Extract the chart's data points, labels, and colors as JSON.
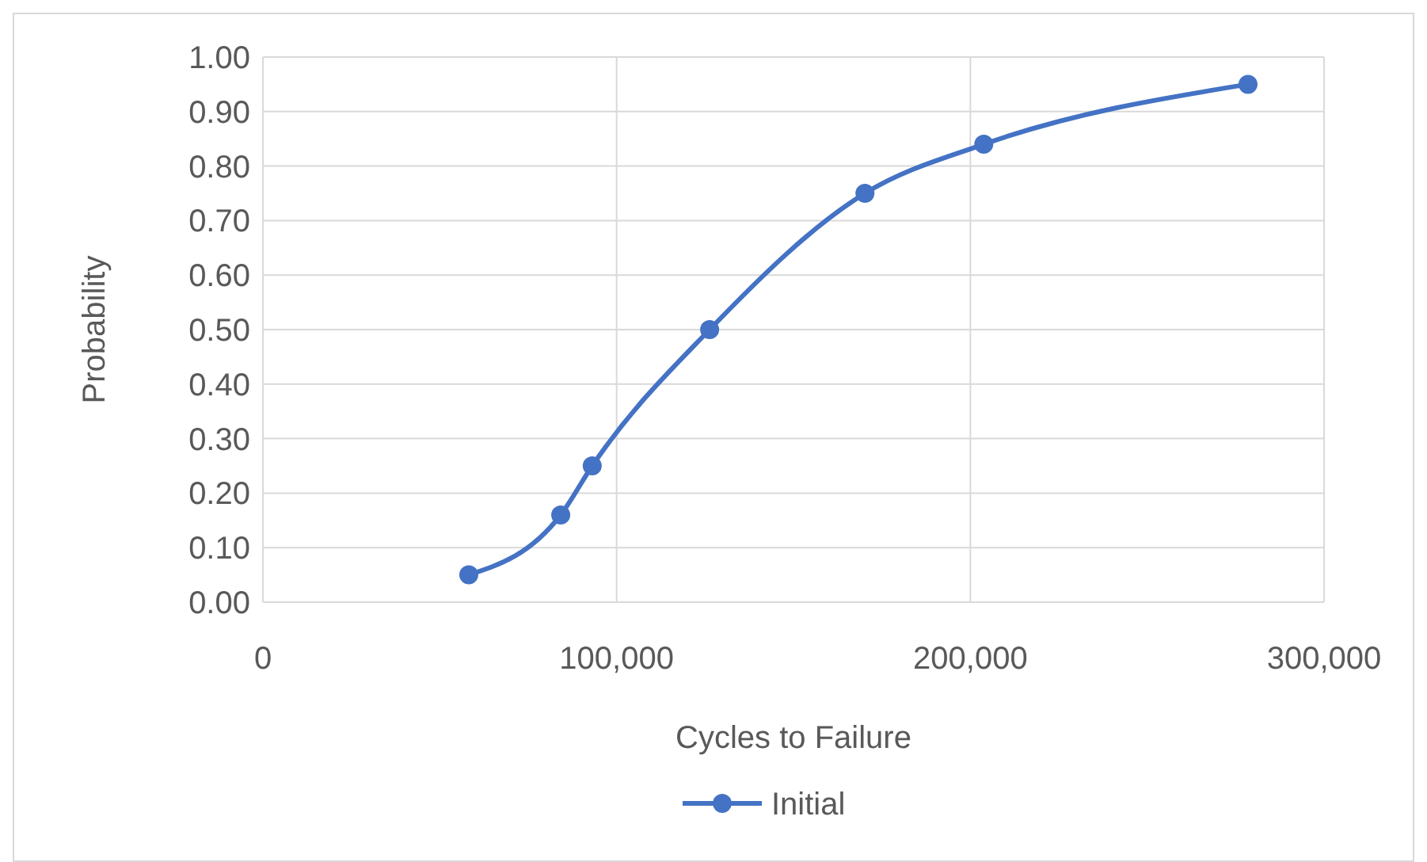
{
  "chart_data": {
    "type": "line",
    "xlabel": "Cycles to Failure",
    "ylabel": "Probability",
    "series": [
      {
        "name": "Initial",
        "color": "#4472c4",
        "x": [
          58200,
          84200,
          93100,
          126300,
          170200,
          203800,
          278500
        ],
        "values": [
          0.05,
          0.16,
          0.25,
          0.5,
          0.75,
          0.84,
          0.95
        ]
      }
    ],
    "xlim": [
      0,
      300000
    ],
    "xticks": [
      {
        "value": 0,
        "label": "0"
      },
      {
        "value": 100000,
        "label": "100,000"
      },
      {
        "value": 200000,
        "label": "200,000"
      },
      {
        "value": 300000,
        "label": "300,000"
      }
    ],
    "ylim": [
      0,
      1
    ],
    "yticks": [
      {
        "value": 0,
        "label": "0.00"
      },
      {
        "value": 0.1,
        "label": "0.10"
      },
      {
        "value": 0.2,
        "label": "0.20"
      },
      {
        "value": 0.3,
        "label": "0.30"
      },
      {
        "value": 0.4,
        "label": "0.40"
      },
      {
        "value": 0.5,
        "label": "0.50"
      },
      {
        "value": 0.6,
        "label": "0.60"
      },
      {
        "value": 0.7,
        "label": "0.70"
      },
      {
        "value": 0.8,
        "label": "0.80"
      },
      {
        "value": 0.9,
        "label": "0.90"
      },
      {
        "value": 1,
        "label": "1.00"
      }
    ],
    "grid": true,
    "legend": "bottom",
    "marker": "circle",
    "line_style": "solid"
  }
}
